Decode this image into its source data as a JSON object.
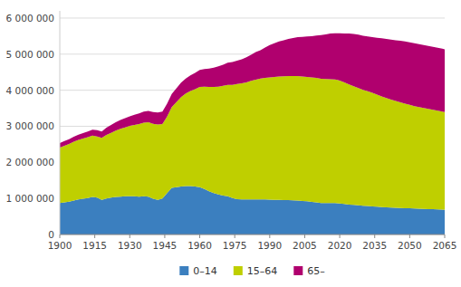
{
  "chart_data": {
    "type": "area",
    "stacked": true,
    "x": [
      1900,
      1902,
      1904,
      1906,
      1908,
      1910,
      1912,
      1914,
      1916,
      1918,
      1920,
      1922,
      1924,
      1926,
      1928,
      1930,
      1932,
      1934,
      1936,
      1938,
      1940,
      1942,
      1944,
      1946,
      1948,
      1950,
      1952,
      1954,
      1956,
      1958,
      1960,
      1962,
      1964,
      1966,
      1968,
      1970,
      1972,
      1974,
      1976,
      1978,
      1980,
      1982,
      1984,
      1986,
      1988,
      1990,
      1992,
      1994,
      1996,
      1998,
      2000,
      2002,
      2004,
      2006,
      2008,
      2010,
      2012,
      2014,
      2016,
      2018,
      2019,
      2020,
      2022,
      2024,
      2026,
      2028,
      2030,
      2032,
      2034,
      2036,
      2038,
      2040,
      2042,
      2044,
      2046,
      2048,
      2050,
      2052,
      2054,
      2056,
      2058,
      2060,
      2062,
      2064,
      2065
    ],
    "series": [
      {
        "name": "0–14",
        "color": "#3b7fbf",
        "values": [
          870000,
          890000,
          910000,
          940000,
          970000,
          990000,
          1010000,
          1040000,
          1020000,
          960000,
          1000000,
          1020000,
          1040000,
          1050000,
          1060000,
          1060000,
          1060000,
          1050000,
          1060000,
          1050000,
          990000,
          960000,
          1000000,
          1150000,
          1290000,
          1310000,
          1330000,
          1340000,
          1340000,
          1330000,
          1310000,
          1260000,
          1200000,
          1150000,
          1110000,
          1080000,
          1060000,
          1010000,
          980000,
          970000,
          970000,
          970000,
          975000,
          975000,
          970000,
          965000,
          960000,
          960000,
          955000,
          955000,
          950000,
          940000,
          930000,
          920000,
          905000,
          890000,
          875000,
          870000,
          870000,
          870000,
          865000,
          860000,
          845000,
          830000,
          820000,
          810000,
          800000,
          790000,
          780000,
          770000,
          760000,
          755000,
          748000,
          742000,
          736000,
          730000,
          725000,
          720000,
          715000,
          710000,
          705000,
          700000,
          695000,
          690000,
          685000
        ]
      },
      {
        "name": "15–64",
        "color": "#bfcf00",
        "values": [
          1540000,
          1570000,
          1600000,
          1630000,
          1650000,
          1670000,
          1690000,
          1700000,
          1700000,
          1720000,
          1760000,
          1800000,
          1840000,
          1880000,
          1910000,
          1950000,
          1980000,
          2010000,
          2040000,
          2060000,
          2080000,
          2090000,
          2060000,
          2120000,
          2240000,
          2360000,
          2480000,
          2570000,
          2640000,
          2700000,
          2780000,
          2840000,
          2890000,
          2940000,
          2990000,
          3040000,
          3090000,
          3140000,
          3190000,
          3220000,
          3250000,
          3290000,
          3320000,
          3350000,
          3370000,
          3390000,
          3410000,
          3420000,
          3430000,
          3440000,
          3440000,
          3450000,
          3450000,
          3450000,
          3450000,
          3450000,
          3445000,
          3440000,
          3435000,
          3430000,
          3420000,
          3410000,
          3370000,
          3330000,
          3290000,
          3250000,
          3210000,
          3180000,
          3150000,
          3110000,
          3070000,
          3030000,
          2990000,
          2960000,
          2930000,
          2900000,
          2870000,
          2840000,
          2820000,
          2800000,
          2780000,
          2760000,
          2740000,
          2720000,
          2710000
        ]
      },
      {
        "name": "65–",
        "color": "#b0006e",
        "values": [
          125000,
          130000,
          135000,
          140000,
          145000,
          150000,
          158000,
          165000,
          170000,
          175000,
          200000,
          215000,
          230000,
          245000,
          255000,
          265000,
          280000,
          295000,
          305000,
          315000,
          325000,
          335000,
          345000,
          355000,
          370000,
          385000,
          400000,
          415000,
          430000,
          450000,
          470000,
          490000,
          510000,
          535000,
          560000,
          585000,
          610000,
          630000,
          650000,
          670000,
          695000,
          725000,
          760000,
          785000,
          845000,
          900000,
          935000,
          970000,
          1000000,
          1030000,
          1060000,
          1080000,
          1100000,
          1120000,
          1145000,
          1175000,
          1210000,
          1240000,
          1265000,
          1280000,
          1295000,
          1310000,
          1360000,
          1410000,
          1450000,
          1480000,
          1500000,
          1520000,
          1545000,
          1575000,
          1610000,
          1640000,
          1665000,
          1685000,
          1705000,
          1720000,
          1730000,
          1740000,
          1745000,
          1745000,
          1745000,
          1745000,
          1740000,
          1740000,
          1740000
        ]
      }
    ],
    "xlim": [
      1900,
      2065
    ],
    "xticks": [
      1900,
      1915,
      1930,
      1945,
      1960,
      1975,
      1990,
      2005,
      2020,
      2035,
      2050,
      2065
    ],
    "ylim": [
      0,
      6200000
    ],
    "yticks": [
      0,
      {
        "value": 1000000,
        "label": "1 000 000"
      },
      {
        "value": 2000000,
        "label": "2 000 000"
      },
      {
        "value": 3000000,
        "label": "3 000 000"
      },
      {
        "value": 4000000,
        "label": "4 000 000"
      },
      {
        "value": 5000000,
        "label": "5 000 000"
      },
      {
        "value": 6000000,
        "label": "6 000 000"
      }
    ],
    "grid": true,
    "legend": "bottom"
  }
}
